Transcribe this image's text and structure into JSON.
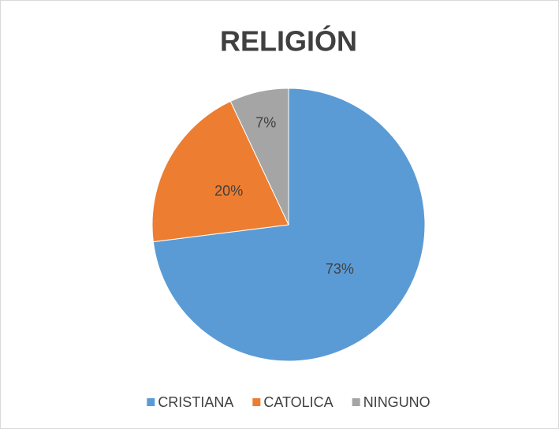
{
  "chart_data": {
    "type": "pie",
    "title": "RELIGIÓN",
    "categories": [
      "CRISTIANA",
      "CATOLICA",
      "NINGUNO"
    ],
    "values": [
      73,
      20,
      7
    ],
    "value_labels": [
      "73%",
      "20%",
      "7%"
    ],
    "colors": [
      "#5b9bd5",
      "#ed7d31",
      "#a5a5a5"
    ],
    "legend": "bottom"
  }
}
